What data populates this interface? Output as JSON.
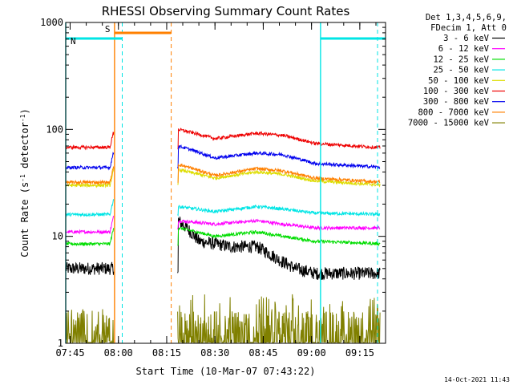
{
  "chart_data": {
    "type": "line",
    "title": "RHESSI Observing Summary Count Rates",
    "xlabel": "Start Time (10-Mar-07 07:43:22)",
    "ylabel": "Count Rate (s⁻¹ detector⁻¹)",
    "ylabel_prefix": "Count Rate (s",
    "ylabel_mid": " detector",
    "ylabel_end": ")",
    "ylabel_exp": "-1",
    "yscale": "log",
    "ylim": [
      1,
      1000
    ],
    "xlim_minutes": [
      -1.37,
      98
    ],
    "x_ticks": [
      {
        "label": "07:45",
        "minute": 0
      },
      {
        "label": "08:00",
        "minute": 15
      },
      {
        "label": "08:15",
        "minute": 30
      },
      {
        "label": "08:30",
        "minute": 45
      },
      {
        "label": "08:45",
        "minute": 60
      },
      {
        "label": "09:00",
        "minute": 75
      },
      {
        "label": "09:15",
        "minute": 90
      }
    ],
    "y_ticks": [
      {
        "label": "1",
        "value": 1
      },
      {
        "label": "10",
        "value": 10
      },
      {
        "label": "100",
        "value": 100
      },
      {
        "label": "1000",
        "value": 1000
      }
    ],
    "legend_header": [
      "Det 1,3,4,5,6,9,",
      "FDecim 1, Att 0"
    ],
    "data_gap_minutes": [
      13.6,
      33.4
    ],
    "series": [
      {
        "name": "3 - 6 keV",
        "color": "#000000",
        "level_pre": 5,
        "levels_post": [
          [
            33.6,
            14
          ],
          [
            40,
            9
          ],
          [
            50,
            8
          ],
          [
            58,
            8
          ],
          [
            65,
            6
          ],
          [
            70,
            5
          ],
          [
            76,
            4.5
          ],
          [
            98,
            4.5
          ]
        ]
      },
      {
        "name": "6 - 12 keV",
        "color": "#ff00ff",
        "level_pre": 11,
        "levels_post": [
          [
            33.6,
            14
          ],
          [
            45,
            13
          ],
          [
            58,
            14
          ],
          [
            66,
            13
          ],
          [
            76,
            12
          ],
          [
            98,
            12
          ]
        ]
      },
      {
        "name": "12 - 25 keV",
        "color": "#00dd00",
        "level_pre": 8.5,
        "levels_post": [
          [
            33.6,
            12
          ],
          [
            45,
            10
          ],
          [
            58,
            11
          ],
          [
            66,
            10
          ],
          [
            76,
            9
          ],
          [
            98,
            8.5
          ]
        ]
      },
      {
        "name": "25 - 50 keV",
        "color": "#00e5e5",
        "level_pre": 16,
        "levels_post": [
          [
            33.6,
            19
          ],
          [
            45,
            17
          ],
          [
            58,
            19
          ],
          [
            66,
            18
          ],
          [
            76,
            16.5
          ],
          [
            98,
            16
          ]
        ]
      },
      {
        "name": "50 - 100 keV",
        "color": "#dddd00",
        "level_pre": 30,
        "levels_post": [
          [
            33.6,
            42
          ],
          [
            45,
            35
          ],
          [
            58,
            40
          ],
          [
            66,
            38
          ],
          [
            76,
            33
          ],
          [
            98,
            30
          ]
        ]
      },
      {
        "name": "100 - 300 keV",
        "color": "#ee0000",
        "level_pre": 68,
        "levels_post": [
          [
            33.6,
            100
          ],
          [
            45,
            82
          ],
          [
            58,
            92
          ],
          [
            66,
            88
          ],
          [
            76,
            74
          ],
          [
            98,
            67
          ]
        ]
      },
      {
        "name": "300 - 800 keV",
        "color": "#0000ee",
        "level_pre": 44,
        "levels_post": [
          [
            33.6,
            70
          ],
          [
            45,
            54
          ],
          [
            58,
            60
          ],
          [
            66,
            58
          ],
          [
            76,
            48
          ],
          [
            98,
            44
          ]
        ]
      },
      {
        "name": "800 - 7000 keV",
        "color": "#ff8000",
        "level_pre": 32,
        "levels_post": [
          [
            33.6,
            47
          ],
          [
            45,
            37
          ],
          [
            58,
            43
          ],
          [
            66,
            41
          ],
          [
            76,
            35
          ],
          [
            98,
            32
          ]
        ]
      },
      {
        "name": "7000 - 15000 keV",
        "color": "#808000",
        "level_pre": 1.5,
        "levels_post": [
          [
            33.6,
            1.6
          ],
          [
            98,
            1.6
          ]
        ]
      }
    ],
    "flags": [
      {
        "label": "S",
        "color": "#ff8000",
        "start_minute": 13.8,
        "end_minute": 31.4
      },
      {
        "label": "N",
        "color": "#00e5e5",
        "start_minute": -1.37,
        "end_minute": 16.2
      },
      {
        "label": "",
        "color": "#00e5e5",
        "start_minute": 77.8,
        "end_minute": 98
      }
    ],
    "vertical_markers": [
      {
        "minute": -1.37,
        "color": "#00e5e5",
        "style": "solid"
      },
      {
        "minute": 13.8,
        "color": "#ff8000",
        "style": "solid"
      },
      {
        "minute": 16.2,
        "color": "#00e5e5",
        "style": "dashed"
      },
      {
        "minute": 31.4,
        "color": "#ff8000",
        "style": "dashed"
      },
      {
        "minute": 77.8,
        "color": "#00e5e5",
        "style": "solid"
      },
      {
        "minute": 95.5,
        "color": "#00e5e5",
        "style": "dashed"
      }
    ]
  },
  "footer_date": "14-Oct-2021 11:43"
}
